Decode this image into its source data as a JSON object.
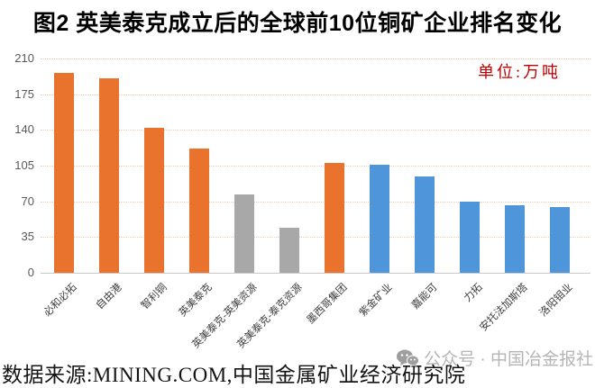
{
  "title": "图2 英美泰克成立后的全球前10位铜矿企业排名变化",
  "unit_label": "单位:万吨",
  "footer": {
    "source": "数据来源:MINING.COM,中国金属矿业经济研究院",
    "watermark": "公众号 · 中国冶金报社"
  },
  "colors": {
    "orange": "#e9732c",
    "gray": "#a8a8a8",
    "blue": "#4e95d9",
    "gridline": "#f2c9a2",
    "axis_line": "#c9c9c9",
    "tick_label": "#595959",
    "unit_label": "#c00000",
    "watermark": "#b5b5b5"
  },
  "chart_data": {
    "type": "bar",
    "title": "图2 英美泰克成立后的全球前10位铜矿企业排名变化",
    "unit": "万吨",
    "categories": [
      "必和必拓",
      "自由港",
      "智利铜",
      "英美泰克",
      "英美泰克-英美资源",
      "英美泰克-泰克资源",
      "墨西哥集团",
      "紫金矿业",
      "嘉能可",
      "力拓",
      "安托法加斯塔",
      "洛阳钼业"
    ],
    "values": [
      196,
      191,
      142,
      122,
      77,
      44,
      108,
      106,
      94,
      70,
      66,
      64
    ],
    "bar_color_keys": [
      "orange",
      "orange",
      "orange",
      "orange",
      "gray",
      "gray",
      "orange",
      "blue",
      "blue",
      "blue",
      "blue",
      "blue"
    ],
    "yticks": [
      0,
      35,
      70,
      105,
      140,
      175,
      210
    ],
    "ylim": [
      0,
      210
    ],
    "grid": true,
    "legend": false,
    "xlabel_rotation_deg": -45
  }
}
